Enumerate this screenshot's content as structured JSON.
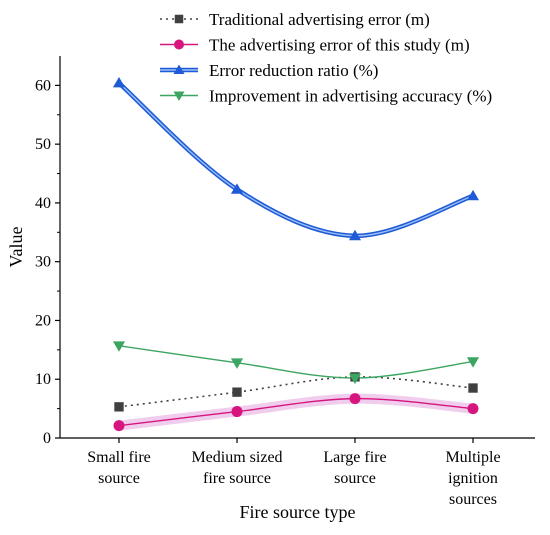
{
  "chart_data": {
    "type": "line",
    "xlabel": "Fire source type",
    "ylabel": "Value",
    "ylim": [
      0,
      65
    ],
    "yticks": [
      0,
      10,
      20,
      30,
      40,
      50,
      60
    ],
    "categories": [
      [
        "Small fire",
        "source"
      ],
      [
        "Medium sized",
        "fire source"
      ],
      [
        "Large fire",
        "source"
      ],
      [
        "Multiple",
        "ignition",
        "sources"
      ]
    ],
    "series": [
      {
        "name": "Traditional advertising error (m)",
        "values": [
          5.3,
          7.8,
          10.4,
          8.5
        ],
        "color": "#404040",
        "marker": "square",
        "line": "dotted"
      },
      {
        "name": "The advertising error of this study (m)",
        "values": [
          2.1,
          4.5,
          6.7,
          5.0
        ],
        "color": "#d6157f",
        "marker": "circle",
        "line": "solid",
        "band": "#e9b8e6"
      },
      {
        "name": "Error reduction ratio (%)",
        "values": [
          60.4,
          42.3,
          34.4,
          41.2
        ],
        "color": "#1f5bd6",
        "marker": "triangle-up",
        "line": "double"
      },
      {
        "name": "Improvement in advertising accuracy (%)",
        "values": [
          15.7,
          12.8,
          10.2,
          13.0
        ],
        "color": "#3ca561",
        "marker": "triangle-down",
        "line": "solid"
      }
    ],
    "legend_position": "top-right",
    "grid": false
  }
}
